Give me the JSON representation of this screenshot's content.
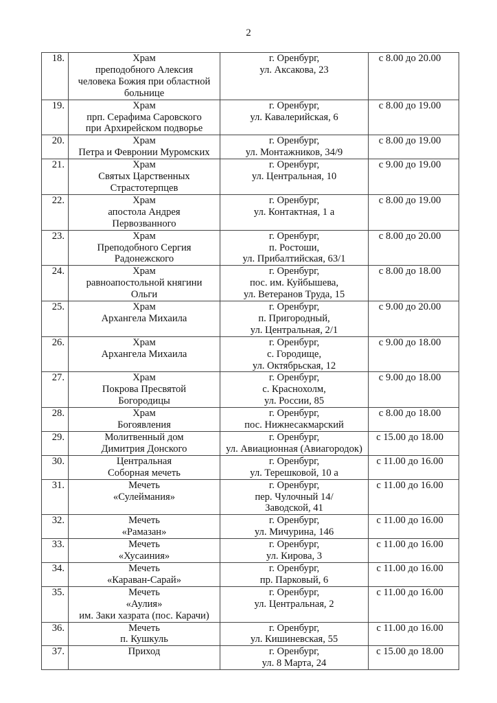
{
  "page_number": "2",
  "rows": [
    {
      "num": "18.",
      "name": "Храм\nпреподобного Алексия\nчеловека Божия при областной\nбольнице",
      "address": "г. Оренбург,\nул. Аксакова, 23",
      "hours": "с 8.00 до 20.00"
    },
    {
      "num": "19.",
      "name": "Храм\nпрп. Серафима Саровского\nпри Архирейском подворье",
      "address": "г. Оренбург,\nул. Кавалерийская, 6",
      "hours": "с 8.00 до 19.00"
    },
    {
      "num": "20.",
      "name": "Храм\nПетра и Февронии Муромских",
      "address": "г. Оренбург,\nул. Монтажников, 34/9",
      "hours": "с 8.00 до 19.00"
    },
    {
      "num": "21.",
      "name": "Храм\nСвятых Царственных\nСтрастотерпцев",
      "address": "г. Оренбург,\nул. Центральная, 10",
      "hours": "с 9.00 до 19.00"
    },
    {
      "num": "22.",
      "name": "Храм\nапостола Андрея\nПервозванного",
      "address": "г. Оренбург,\nул. Контактная, 1 а",
      "hours": "с 8.00 до 19.00"
    },
    {
      "num": "23.",
      "name": "Храм\nПреподобного Сергия\nРадонежского",
      "address": "г. Оренбург,\nп. Ростоши,\nул. Прибалтийская, 63/1",
      "hours": "с 8.00 до 20.00"
    },
    {
      "num": "24.",
      "name": "Храм\nравноапостольной княгини\nОльги",
      "address": "г. Оренбург,\nпос. им. Куйбышева,\nул. Ветеранов Труда, 15",
      "hours": "с 8.00 до 18.00"
    },
    {
      "num": "25.",
      "name": "Храм\nАрхангела Михаила",
      "address": "г. Оренбург,\nп. Пригородный,\nул. Центральная, 2/1",
      "hours": "с 9.00 до 20.00"
    },
    {
      "num": "26.",
      "name": "Храм\nАрхангела Михаила",
      "address": "г. Оренбург,\nс. Городище,\nул. Октябрьская, 12",
      "hours": "с 9.00 до 18.00"
    },
    {
      "num": "27.",
      "name": "Храм\nПокрова Пресвятой\nБогородицы",
      "address": "г. Оренбург,\nс. Краснохолм,\nул. России, 85",
      "hours": "с 9.00 до 18.00"
    },
    {
      "num": "28.",
      "name": "Храм\nБогоявления",
      "address": "г. Оренбург,\nпос. Нижнесакмарский",
      "hours": "с 8.00 до 18.00"
    },
    {
      "num": "29.",
      "name": "Молитвенный дом\nДимитрия Донского",
      "address": "г. Оренбург,\nул. Авиационная (Авиагородок)",
      "hours": "с 15.00 до 18.00"
    },
    {
      "num": "30.",
      "name": "Центральная\nСоборная мечеть",
      "address": "г. Оренбург,\nул. Терешковой, 10 а",
      "hours": "с 11.00 до 16.00"
    },
    {
      "num": "31.",
      "name": "Мечеть\n«Сулеймания»",
      "address": "г. Оренбург,\nпер. Чулочный 14/\nЗаводской, 41",
      "hours": "с 11.00 до 16.00"
    },
    {
      "num": "32.",
      "name": "Мечеть\n«Рамазан»",
      "address": "г. Оренбург,\nул. Мичурина, 146",
      "hours": "с 11.00 до 16.00"
    },
    {
      "num": "33.",
      "name": "Мечеть\n«Хусаиния»",
      "address": "г. Оренбург,\nул. Кирова, 3",
      "hours": "с 11.00 до 16.00"
    },
    {
      "num": "34.",
      "name": "Мечеть\n«Караван-Сарай»",
      "address": "г. Оренбург,\nпр. Парковый, 6",
      "hours": "с 11.00 до 16.00"
    },
    {
      "num": "35.",
      "name": "Мечеть\n«Аулия»\nим. Заки хазрата (пос. Карачи)",
      "address": "г. Оренбург,\nул. Центральная, 2",
      "hours": "с 11.00 до 16.00"
    },
    {
      "num": "36.",
      "name": "Мечеть\nп. Кушкуль",
      "address": "г. Оренбург,\nул. Кишиневская, 55",
      "hours": "с 11.00 до 16.00"
    },
    {
      "num": "37.",
      "name": "Приход",
      "address": "г. Оренбург,\nул. 8 Марта, 24",
      "hours": "с 15.00 до 18.00"
    }
  ]
}
